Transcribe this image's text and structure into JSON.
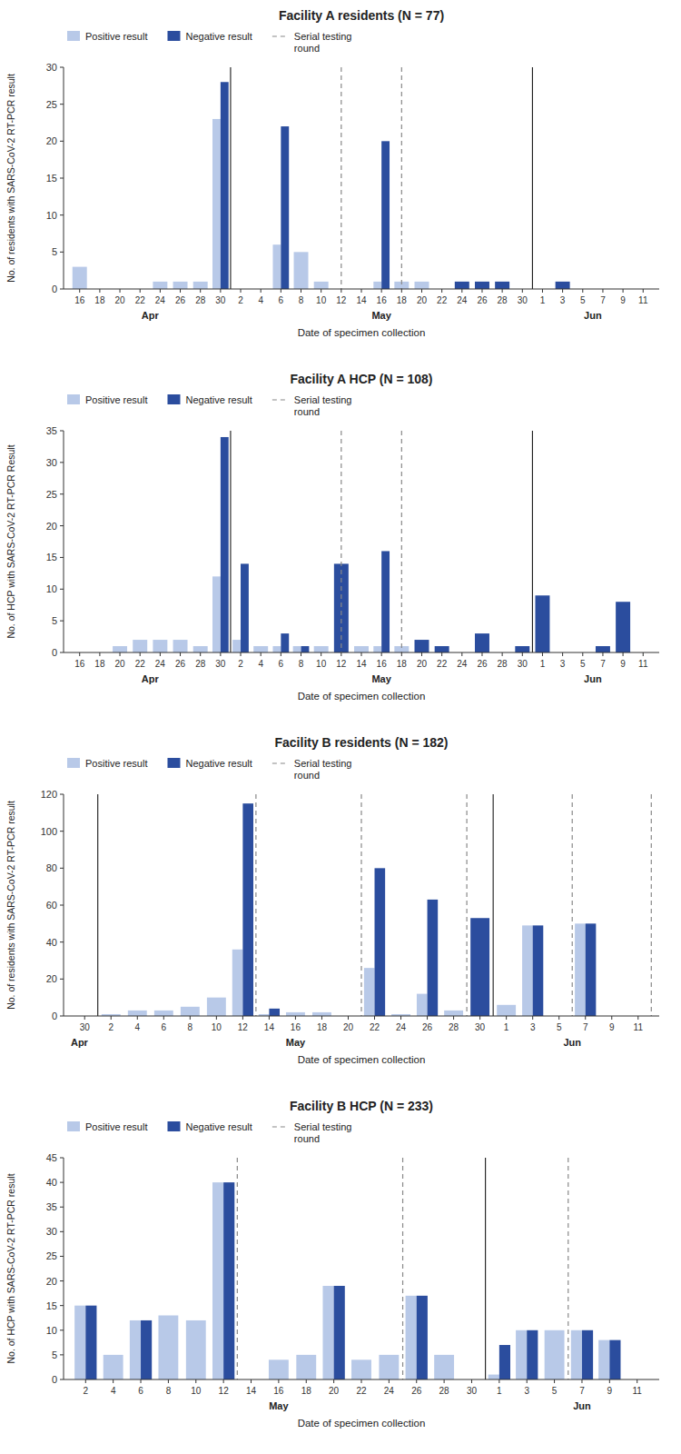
{
  "chart_data": [
    {
      "type": "bar",
      "title": "Facility A residents (N = 77)",
      "x_label": "Date of specimen collection",
      "y_label": "No. of residents with SARS-CoV-2 RT-PCR result",
      "categories": [
        "16",
        "18",
        "20",
        "22",
        "24",
        "26",
        "28",
        "30",
        "2",
        "4",
        "6",
        "8",
        "10",
        "12",
        "14",
        "16",
        "18",
        "20",
        "22",
        "24",
        "26",
        "28",
        "30",
        "1",
        "3",
        "5",
        "7",
        "9",
        "11"
      ],
      "series": [
        {
          "name": "Positive result",
          "color": "#b8c9e8",
          "values": [
            3,
            null,
            null,
            null,
            1,
            1,
            1,
            23,
            null,
            null,
            6,
            5,
            1,
            null,
            null,
            1,
            1,
            1,
            null,
            null,
            null,
            null,
            null,
            null,
            null,
            null,
            null,
            null,
            null
          ]
        },
        {
          "name": "Negative result",
          "color": "#2b4d9e",
          "values": [
            null,
            null,
            null,
            null,
            null,
            null,
            null,
            28,
            null,
            null,
            22,
            null,
            null,
            null,
            null,
            20,
            null,
            null,
            null,
            1,
            1,
            1,
            null,
            null,
            1,
            null,
            null,
            null,
            null
          ]
        }
      ],
      "ylim": [
        0,
        30
      ],
      "yticks": [
        0,
        5,
        10,
        15,
        20,
        25,
        30
      ],
      "grid": false,
      "legend": "upper left",
      "reference_lines": [
        {
          "name": "Serial testing\nround",
          "color": "#888888",
          "line_style": "dashed",
          "x": [
            13,
            16
          ]
        },
        {
          "color": "black",
          "line_style": "solid",
          "x": [
            7.5,
            22.5
          ]
        }
      ],
      "annotations": [
        {
          "text": "Apr",
          "x": 3.5
        },
        {
          "text": "May",
          "x": 15.0
        },
        {
          "text": "Jun",
          "x": 25.5
        }
      ]
    },
    {
      "type": "bar",
      "title": "Facility A HCP (N = 108)",
      "x_label": "Date of specimen collection",
      "y_label": "No. of HCP with SARS-CoV-2 RT-PCR Result",
      "categories": [
        "16",
        "18",
        "20",
        "22",
        "24",
        "26",
        "28",
        "30",
        "2",
        "4",
        "6",
        "8",
        "10",
        "12",
        "14",
        "16",
        "18",
        "20",
        "22",
        "24",
        "26",
        "28",
        "30",
        "1",
        "3",
        "5",
        "7",
        "9",
        "11"
      ],
      "series": [
        {
          "name": "Positive result",
          "color": "#b8c9e8",
          "values": [
            null,
            null,
            1,
            2,
            2,
            2,
            1,
            12,
            2,
            1,
            1,
            1,
            1,
            null,
            1,
            1,
            1,
            null,
            null,
            null,
            null,
            null,
            null,
            null,
            null,
            null,
            null,
            null,
            null
          ]
        },
        {
          "name": "Negative result",
          "color": "#2b4d9e",
          "values": [
            null,
            null,
            null,
            null,
            null,
            null,
            null,
            34,
            14,
            null,
            3,
            1,
            null,
            14,
            null,
            16,
            null,
            2,
            1,
            null,
            3,
            null,
            1,
            9,
            null,
            null,
            1,
            8,
            null
          ]
        }
      ],
      "ylim": [
        0,
        35
      ],
      "yticks": [
        0,
        5,
        10,
        15,
        20,
        25,
        30,
        35
      ],
      "grid": false,
      "legend": "upper left",
      "reference_lines": [
        {
          "name": "Serial testing\nround",
          "color": "#888888",
          "line_style": "dashed",
          "x": [
            13,
            16
          ]
        },
        {
          "color": "black",
          "line_style": "solid",
          "x": [
            7.5,
            22.5
          ]
        }
      ],
      "annotations": [
        {
          "text": "Apr",
          "x": 3.5
        },
        {
          "text": "May",
          "x": 15.0
        },
        {
          "text": "Jun",
          "x": 25.5
        }
      ]
    },
    {
      "type": "bar",
      "title": "Facility B residents (N = 182)",
      "x_label": "Date of specimen collection",
      "y_label": "No. of residents with SARS-CoV-2 RT-PCR result",
      "categories": [
        "30",
        "2",
        "4",
        "6",
        "8",
        "10",
        "12",
        "14",
        "16",
        "18",
        "20",
        "22",
        "24",
        "26",
        "28",
        "30",
        "1",
        "3",
        "5",
        "7",
        "9",
        "11"
      ],
      "series": [
        {
          "name": "Positive result",
          "color": "#b8c9e8",
          "values": [
            null,
            1,
            3,
            3,
            5,
            10,
            36,
            1,
            2,
            2,
            null,
            26,
            1,
            12,
            3,
            null,
            6,
            49,
            null,
            50,
            null,
            null
          ]
        },
        {
          "name": "Negative result",
          "color": "#2b4d9e",
          "values": [
            null,
            null,
            null,
            null,
            null,
            null,
            115,
            4,
            null,
            null,
            null,
            80,
            null,
            63,
            null,
            53,
            null,
            49,
            null,
            50,
            null,
            null
          ]
        }
      ],
      "ylim": [
        0,
        120
      ],
      "yticks": [
        0,
        20,
        40,
        60,
        80,
        100,
        120
      ],
      "grid": false,
      "legend": "upper left",
      "reference_lines": [
        {
          "name": "Serial testing\nround",
          "color": "#888888",
          "line_style": "dashed",
          "x": [
            6.5,
            10.5,
            14.5,
            18.5,
            21.5
          ]
        },
        {
          "color": "black",
          "line_style": "solid",
          "x": [
            0.5,
            15.5
          ]
        }
      ],
      "annotations": [
        {
          "text": "Apr",
          "x": -0.2
        },
        {
          "text": "May",
          "x": 8.0
        },
        {
          "text": "Jun",
          "x": 18.5
        }
      ]
    },
    {
      "type": "bar",
      "title": "Facility B HCP (N = 233)",
      "x_label": "Date of specimen collection",
      "y_label": "No. of HCP with SARS-CoV-2 RT-PCR result",
      "categories": [
        "2",
        "4",
        "6",
        "8",
        "10",
        "12",
        "14",
        "16",
        "18",
        "20",
        "22",
        "24",
        "26",
        "28",
        "30",
        "1",
        "3",
        "5",
        "7",
        "9",
        "11"
      ],
      "series": [
        {
          "name": "Positive result",
          "color": "#b8c9e8",
          "values": [
            15,
            5,
            12,
            13,
            12,
            40,
            null,
            4,
            5,
            19,
            4,
            5,
            17,
            5,
            null,
            1,
            10,
            10,
            10,
            8,
            null
          ]
        },
        {
          "name": "Negative result",
          "color": "#2b4d9e",
          "values": [
            15,
            null,
            12,
            null,
            null,
            40,
            null,
            null,
            null,
            19,
            null,
            null,
            17,
            null,
            null,
            7,
            10,
            null,
            10,
            8,
            null
          ]
        }
      ],
      "ylim": [
        0,
        45
      ],
      "yticks": [
        0,
        5,
        10,
        15,
        20,
        25,
        30,
        35,
        40,
        45
      ],
      "grid": false,
      "legend": "upper left",
      "reference_lines": [
        {
          "name": "Serial testing\nround",
          "color": "#888888",
          "line_style": "dashed",
          "x": [
            5.5,
            11.5,
            17.5
          ]
        },
        {
          "color": "black",
          "line_style": "solid",
          "x": [
            14.5
          ]
        }
      ],
      "annotations": [
        {
          "text": "May",
          "x": 7.0
        },
        {
          "text": "Jun",
          "x": 18.0
        }
      ]
    }
  ]
}
